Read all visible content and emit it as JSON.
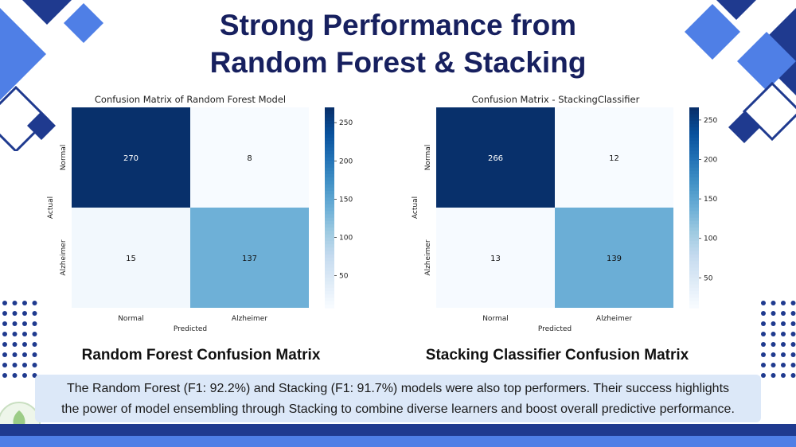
{
  "slide": {
    "title_line1": "Strong Performance from",
    "title_line2": "Random Forest & Stacking",
    "caption_line1": "The Random Forest (F1: 92.2%) and Stacking (F1: 91.7%) models were also top performers. Their success highlights",
    "caption_line2": "the power of model ensembling through Stacking to combine diverse learners and boost overall predictive performance.",
    "accent_dark": "#1f3a8f",
    "accent_light": "#4f7fe6"
  },
  "chart_data": [
    {
      "type": "heatmap",
      "title": "Confusion Matrix of Random Forest Model",
      "subtitle": "Random Forest Confusion Matrix",
      "xlabel": "Predicted",
      "ylabel": "Actual",
      "x_categories": [
        "Normal",
        "Alzheimer"
      ],
      "y_categories": [
        "Normal",
        "Alzheimer"
      ],
      "values": [
        [
          270,
          8
        ],
        [
          15,
          137
        ]
      ],
      "colormap": "Blues",
      "colorbar_ticks": [
        50,
        100,
        150,
        200,
        250
      ]
    },
    {
      "type": "heatmap",
      "title": "Confusion Matrix - StackingClassifier",
      "subtitle": "Stacking Classifier Confusion Matrix",
      "xlabel": "Predicted",
      "ylabel": "Actual",
      "x_categories": [
        "Normal",
        "Alzheimer"
      ],
      "y_categories": [
        "Normal",
        "Alzheimer"
      ],
      "values": [
        [
          266,
          12
        ],
        [
          13,
          139
        ]
      ],
      "colormap": "Blues",
      "colorbar_ticks": [
        50,
        100,
        150,
        200,
        250
      ]
    }
  ]
}
